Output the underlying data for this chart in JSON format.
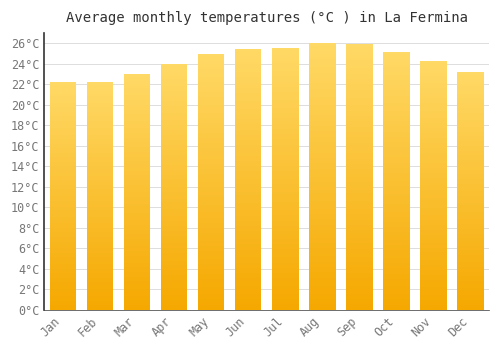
{
  "title": "Average monthly temperatures (°C ) in La Fermina",
  "months": [
    "Jan",
    "Feb",
    "Mar",
    "Apr",
    "May",
    "Jun",
    "Jul",
    "Aug",
    "Sep",
    "Oct",
    "Nov",
    "Dec"
  ],
  "values": [
    22.2,
    22.2,
    23.0,
    24.0,
    25.0,
    25.5,
    25.6,
    26.0,
    25.9,
    25.2,
    24.3,
    23.2
  ],
  "bar_color_bottom": "#F5A800",
  "bar_color_top": "#FFD966",
  "ylim": [
    0,
    27
  ],
  "ytick_step": 2,
  "background_color": "#FFFFFF",
  "plot_bg_color": "#FFFFFF",
  "grid_color": "#DDDDDD",
  "title_fontsize": 10,
  "tick_fontsize": 8.5,
  "font_family": "monospace",
  "title_color": "#333333",
  "tick_color": "#777777",
  "spine_color": "#333333"
}
